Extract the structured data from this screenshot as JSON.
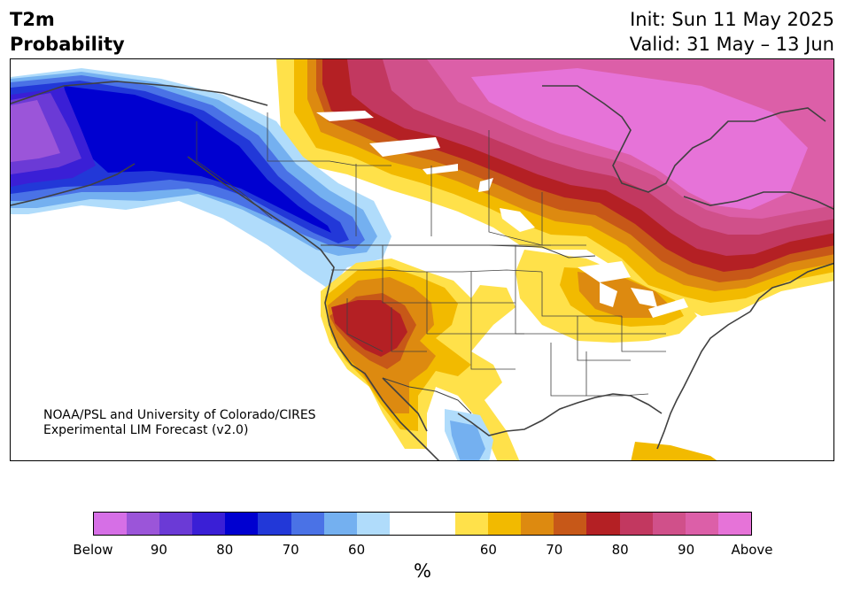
{
  "header": {
    "title_line1": "T2m",
    "title_line2": "Probability",
    "init": "Init: Sun 11 May 2025",
    "valid": "Valid: 31 May – 13 Jun"
  },
  "credit": {
    "line1": "NOAA/PSL and University of Colorado/CIRES",
    "line2": "Experimental LIM Forecast (v2.0)"
  },
  "colorbar": {
    "colors": [
      "#d66fe6",
      "#9b55d9",
      "#6b3ad6",
      "#3a1fd6",
      "#0000d0",
      "#2238d8",
      "#4a72e6",
      "#74b0f0",
      "#b0dcfb",
      "#ffffff",
      "#ffffff",
      "#ffe14a",
      "#f2ba00",
      "#dd8a10",
      "#c75818",
      "#b42024",
      "#c23860",
      "#d0508a",
      "#dc5fa8",
      "#e673d8"
    ],
    "tick_labels": [
      "Below",
      "90",
      "80",
      "70",
      "60",
      "60",
      "70",
      "80",
      "90",
      "Above"
    ],
    "unit": "%"
  },
  "map": {
    "region": "North America",
    "palette": {
      "above_max": "#e673d8",
      "above_90": "#dc5fa8",
      "above_85": "#d0508a",
      "above_80": "#c23860",
      "above_75": "#b42024",
      "above_70": "#c75818",
      "above_65": "#dd8a10",
      "above_60": "#f2ba00",
      "above_55": "#ffe14a",
      "below_55": "#b0dcfb",
      "below_60": "#74b0f0",
      "below_65": "#4a72e6",
      "below_70": "#2238d8",
      "below_75": "#0000d0",
      "below_80": "#3a1fd6",
      "below_85": "#6b3ad6",
      "below_90": "#9b55d9"
    }
  }
}
